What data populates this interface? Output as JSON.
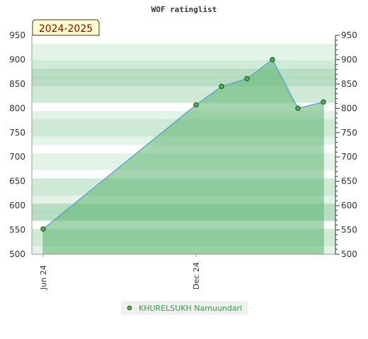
{
  "chart_data": {
    "type": "area",
    "title": "WOF ratinglist",
    "season_label": "2024-2025",
    "ylim": [
      500,
      950
    ],
    "y_ticks": [
      500,
      550,
      600,
      650,
      700,
      750,
      800,
      850,
      900,
      950
    ],
    "x_ticks": [
      "Jun 24",
      "Dec 24"
    ],
    "legend_position": "bottom-center",
    "series": [
      {
        "name": "KHURELSUKH Namuundari",
        "points": [
          {
            "x": "2024-06",
            "y": 552
          },
          {
            "x": "2024-12",
            "y": 807
          },
          {
            "x": "2025-01",
            "y": 845
          },
          {
            "x": "2025-02",
            "y": 861
          },
          {
            "x": "2025-03",
            "y": 900
          },
          {
            "x": "2025-04",
            "y": 800
          },
          {
            "x": "2025-05",
            "y": 813
          }
        ]
      }
    ]
  },
  "colors": {
    "area_fill": "#5cb46f",
    "line": "#5b9bd5",
    "marker": "#4caf50",
    "legend_text": "#2e9e47",
    "season_bg": "#ffffcc"
  }
}
